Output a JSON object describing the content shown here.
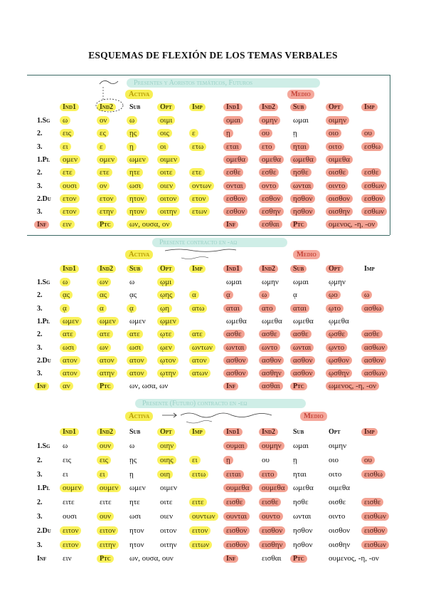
{
  "title": "ESQUEMAS DE FLEXIÓN DE LOS TEMAS VERBALES",
  "colors": {
    "yellow": "#faf25c",
    "pink": "#f3a293",
    "teal": "#cfeee7",
    "rule": "#3c6a66"
  },
  "sections": [
    {
      "title": "Presentes y Aoristos temáticos, Futuros",
      "active": "Activa",
      "middle": "Medio",
      "note": "",
      "headers": [
        "Ind1",
        "Ind2",
        "Sub",
        "Opt",
        "Imp",
        "Ind1",
        "Ind2",
        "Sub",
        "Opt",
        "Imp"
      ],
      "rows": [
        {
          "label": "1.Sg",
          "cells": [
            "ω",
            "ον",
            "ω",
            "οιμι",
            "",
            "ομαι",
            "ομην",
            "ωμαι",
            "οιμην",
            ""
          ]
        },
        {
          "label": "2.",
          "cells": [
            "εις",
            "ες",
            "ῃς",
            "οις",
            "ε",
            "ῃ",
            "ου",
            "ῃ",
            "οιο",
            "ου"
          ]
        },
        {
          "label": "3.",
          "cells": [
            "ει",
            "ε",
            "ῃ",
            "οι",
            "ετω",
            "εται",
            "ετο",
            "ηται",
            "οιτο",
            "εσθω"
          ]
        },
        {
          "label": "1.Pl",
          "cells": [
            "ομεν",
            "ομεν",
            "ωμεν",
            "οιμεν",
            "",
            "ομεθα",
            "ομεθα",
            "ωμεθα",
            "οιμεθα",
            ""
          ]
        },
        {
          "label": "2.",
          "cells": [
            "ετε",
            "ετε",
            "ητε",
            "οιτε",
            "ετε",
            "εσθε",
            "εσθε",
            "ησθε",
            "οισθε",
            "εσθε"
          ]
        },
        {
          "label": "3.",
          "cells": [
            "ουσι",
            "ον",
            "ωσι",
            "οιεν",
            "οντων",
            "ονται",
            "οντο",
            "ωνται",
            "οιντο",
            "εσθων"
          ]
        },
        {
          "label": "2.Du",
          "cells": [
            "ετον",
            "ετον",
            "ητον",
            "οιτον",
            "ετον",
            "εσθον",
            "εσθον",
            "ησθον",
            "οισθον",
            "εσθον"
          ]
        },
        {
          "label": "3.",
          "cells": [
            "ετον",
            "ετην",
            "ητον",
            "οιτην",
            "ετων",
            "εσθον",
            "εσθην",
            "ησθον",
            "οισθην",
            "εσθων"
          ]
        },
        {
          "label": "Inf",
          "cells": [
            "ειν",
            "Ptc",
            "ων, ουσα, ον",
            "",
            "",
            "Inf",
            "εσθαι",
            "Ptc",
            "ομενος, -η, -ον",
            ""
          ]
        }
      ]
    },
    {
      "title": "Presente contracto en -αω",
      "active": "Activa",
      "middle": "Medio",
      "note": "",
      "headers": [
        "Ind1",
        "Ind2",
        "Sub",
        "Opt",
        "Imp",
        "Ind1",
        "Ind2",
        "Sub",
        "Opt",
        "Imp"
      ],
      "rows": [
        {
          "label": "1.Sg",
          "cells": [
            "ω",
            "ων",
            "ω",
            "ῳμι",
            "",
            "ωμαι",
            "ωμην",
            "ωμαι",
            "ῳμην",
            ""
          ]
        },
        {
          "label": "2.",
          "cells": [
            "ᾳς",
            "ας",
            "ᾳς",
            "ῳης",
            "α",
            "ᾳ",
            "ω",
            "ᾳ",
            "ῳο",
            "ω"
          ]
        },
        {
          "label": "3.",
          "cells": [
            "ᾳ",
            "α",
            "ᾳ",
            "ῳη",
            "ατω",
            "αται",
            "ατο",
            "αται",
            "ῳτο",
            "ασθω"
          ]
        },
        {
          "label": "1.Pl",
          "cells": [
            "ωμεν",
            "ωμεν",
            "ωμεν",
            "ῳμεν",
            "",
            "ωμεθα",
            "ωμεθα",
            "ωμεθα",
            "ῳμεθα",
            ""
          ]
        },
        {
          "label": "2.",
          "cells": [
            "ατε",
            "ατε",
            "ατε",
            "ῳτε",
            "ατε",
            "ασθε",
            "ασθε",
            "ασθε",
            "ῳσθε",
            "ασθε"
          ]
        },
        {
          "label": "3.",
          "cells": [
            "ωσι",
            "ων",
            "ωσι",
            "ῳεν",
            "ωντων",
            "ωνται",
            "ωντο",
            "ωνται",
            "ῳντο",
            "ασθων"
          ]
        },
        {
          "label": "2.Du",
          "cells": [
            "ατον",
            "ατον",
            "ατον",
            "ῳτον",
            "ατον",
            "ασθον",
            "ασθον",
            "ασθον",
            "ῳσθον",
            "ασθον"
          ]
        },
        {
          "label": "3.",
          "cells": [
            "ατον",
            "ατην",
            "ατον",
            "ῳτην",
            "ατων",
            "ασθον",
            "ασθην",
            "ασθον",
            "ῳσθην",
            "ασθων"
          ]
        },
        {
          "label": "Inf",
          "cells": [
            "αν",
            "Ptc",
            "ων, ωσα, ων",
            "",
            "",
            "Inf",
            "ασθαι",
            "Ptc",
            "ωμενος, -η, -ον",
            ""
          ]
        }
      ]
    },
    {
      "title": "Presente (Futuro) contracto en -εω",
      "active": "Activa",
      "middle": "Medio",
      "note": "",
      "headers": [
        "Ind1",
        "Ind2",
        "Sub",
        "Opt",
        "Imp",
        "Ind1",
        "Ind2",
        "Sub",
        "Opt",
        "Imp"
      ],
      "rows": [
        {
          "label": "1.Sg",
          "cells": [
            "ω",
            "ουν",
            "ω",
            "οιην",
            "",
            "ουμαι",
            "ουμην",
            "ωμαι",
            "οιμην",
            ""
          ]
        },
        {
          "label": "2.",
          "cells": [
            "εις",
            "εις",
            "ῃς",
            "οιης",
            "ει",
            "ῃ",
            "ου",
            "ῃ",
            "οιο",
            "ου"
          ]
        },
        {
          "label": "3.",
          "cells": [
            "ει",
            "ει",
            "ῃ",
            "οιη",
            "ειτω",
            "ειται",
            "ειτο",
            "ηται",
            "οιτο",
            "εισθω"
          ]
        },
        {
          "label": "1.Pl",
          "cells": [
            "ουμεν",
            "ουμεν",
            "ωμεν",
            "οιμεν",
            "",
            "ουμεθα",
            "ουμεθα",
            "ωμεθα",
            "οιμεθα",
            ""
          ]
        },
        {
          "label": "2.",
          "cells": [
            "ειτε",
            "ειτε",
            "ητε",
            "οιτε",
            "ειτε",
            "εισθε",
            "εισθε",
            "ησθε",
            "οισθε",
            "εισθε"
          ]
        },
        {
          "label": "3.",
          "cells": [
            "ουσι",
            "ουν",
            "ωσι",
            "οιεν",
            "ουντων",
            "ουνται",
            "ουντο",
            "ωνται",
            "οιντο",
            "εισθων"
          ]
        },
        {
          "label": "2.Du",
          "cells": [
            "ειτον",
            "ειτον",
            "ητον",
            "οιτον",
            "ειτον",
            "εισθον",
            "εισθον",
            "ησθον",
            "οισθον",
            "εισθον"
          ]
        },
        {
          "label": "3.",
          "cells": [
            "ειτον",
            "ειτην",
            "ητον",
            "οιτην",
            "ειτων",
            "εισθον",
            "εισθην",
            "ησθον",
            "οισθην",
            "εισθων"
          ]
        },
        {
          "label": "Inf",
          "cells": [
            "ειν",
            "Ptc",
            "ων, ουσα, ουν",
            "",
            "",
            "Inf",
            "εισθαι",
            "Ptc",
            "ουμενος, -η, -ον",
            ""
          ]
        }
      ]
    }
  ]
}
